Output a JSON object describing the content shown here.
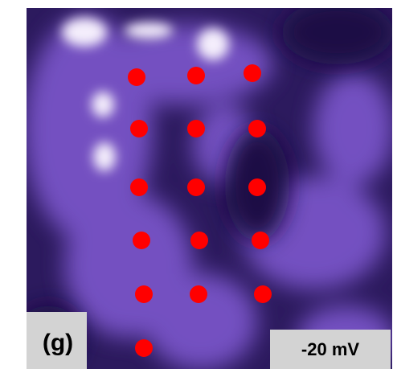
{
  "panel_label": "(g)",
  "voltage_label": "-20 mV"
}
